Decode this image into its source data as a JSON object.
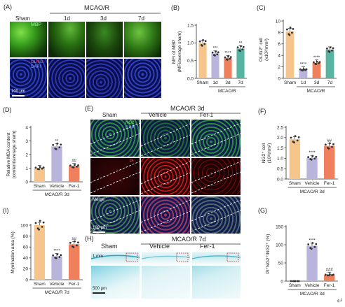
{
  "panels": {
    "A": {
      "letter": "(A)",
      "group": "MCAO/R",
      "cols": [
        "Sham",
        "1d",
        "3d",
        "7d"
      ],
      "marker_top": "MBP",
      "marker_bot1": "OLIG2",
      "marker_bot2": "DAPI",
      "scale": "100 μm"
    },
    "E": {
      "letter": "(E)",
      "group": "MCAO/R 3d",
      "cols": [
        "Sham",
        "Vehicle",
        "Fer-1"
      ],
      "row1a": "NG2",
      "row1b": "DAPI",
      "row2": "PI",
      "row3": "Merge",
      "scale": "100 μm"
    },
    "H": {
      "letter": "(H)",
      "group": "MCAO/R 7d",
      "cols": [
        "Sham",
        "Vehicle",
        "Fer-1"
      ],
      "scale_top": "1 mm",
      "scale_bot": "500 μm"
    }
  },
  "chart_data": [
    {
      "id": "B",
      "letter": "(B)",
      "type": "bar",
      "categories": [
        "Sham",
        "1d",
        "3d",
        "7d"
      ],
      "values": [
        1.0,
        0.7,
        0.57,
        0.84
      ],
      "colors": [
        "#f5c58c",
        "#b9b4dc",
        "#f07f5e",
        "#56b5a0"
      ],
      "ylabel": "MFI of MBP\n(MFI/average sham)",
      "ylim": [
        0,
        1.5
      ],
      "yticks": [
        "0.0",
        "0.5",
        "1.0",
        "1.5"
      ],
      "sig": [
        "",
        "***",
        "****",
        "**"
      ],
      "group_label": "MCAO/R"
    },
    {
      "id": "C",
      "letter": "(C)",
      "type": "bar",
      "categories": [
        "Sham",
        "1d",
        "3d",
        "7d"
      ],
      "values": [
        8.2,
        1.5,
        2.7,
        5.0
      ],
      "colors": [
        "#f5c58c",
        "#b9b4dc",
        "#f07f5e",
        "#56b5a0"
      ],
      "ylabel": "OLIG2⁺ cell\n(x10²/mm²)",
      "ylim": [
        0,
        10
      ],
      "yticks": [
        "0",
        "2",
        "4",
        "6",
        "8",
        "10"
      ],
      "sig": [
        "",
        "****",
        "****",
        ""
      ],
      "group_label": "MCAO/R"
    },
    {
      "id": "D",
      "letter": "(D)",
      "type": "bar",
      "categories": [
        "Sham",
        "Vehicle",
        "Fer-1"
      ],
      "values": [
        1.0,
        2.6,
        1.15
      ],
      "colors": [
        "#f5c58c",
        "#b9b4dc",
        "#f07f5e"
      ],
      "ylabel": "Relative MDA content\n(content/average sham)",
      "ylim": [
        0,
        4
      ],
      "yticks": [
        "0",
        "1",
        "2",
        "3",
        "4"
      ],
      "sig": [
        "",
        "**",
        "##"
      ],
      "group_label": "MCAO/R 3d"
    },
    {
      "id": "F",
      "letter": "(F)",
      "type": "bar",
      "categories": [
        "Sham",
        "Vehicle",
        "Fer-1"
      ],
      "values": [
        1.92,
        1.02,
        1.6
      ],
      "colors": [
        "#f5c58c",
        "#b9b4dc",
        "#f07f5e"
      ],
      "ylabel": "NG2⁺ cell\n(10²/mm²)",
      "ylim": [
        0,
        2.5
      ],
      "yticks": [
        "0.0",
        "0.5",
        "1.0",
        "1.5",
        "2.0",
        "2.5"
      ],
      "sig": [
        "",
        "****",
        "##"
      ],
      "group_label": "MCAO/R 3d"
    },
    {
      "id": "I",
      "letter": "(I)",
      "type": "bar",
      "categories": [
        "Sham",
        "Vehicle",
        "Fer-1"
      ],
      "values": [
        100,
        43,
        65
      ],
      "colors": [
        "#f5c58c",
        "#b9b4dc",
        "#f07f5e"
      ],
      "ylabel": "Myelination area (%)",
      "ylim": [
        0,
        100
      ],
      "yticks": [
        "0",
        "20",
        "40",
        "60",
        "80",
        "100"
      ],
      "sig": [
        "",
        "****",
        "##"
      ],
      "group_label": "MCAO/R 7d"
    },
    {
      "id": "G",
      "letter": "(G)",
      "type": "bar",
      "categories": [
        "Sham",
        "Vehicle",
        "Fer-1"
      ],
      "values": [
        0,
        97,
        17
      ],
      "colors": [
        "#f5c58c",
        "#b9b4dc",
        "#f07f5e"
      ],
      "ylabel": "PI⁺NG2⁺/NG2⁺ (%)",
      "ylim": [
        0,
        150
      ],
      "yticks": [
        "0",
        "50",
        "100",
        "150"
      ],
      "sig": [
        "",
        "****",
        "###"
      ],
      "group_label": "MCAO/R 3d"
    }
  ]
}
